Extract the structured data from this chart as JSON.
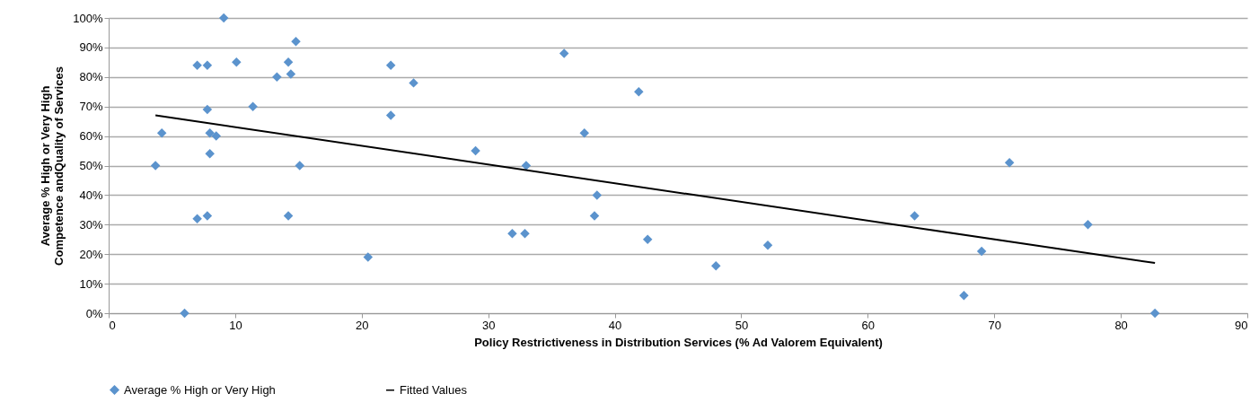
{
  "chart_data": {
    "type": "scatter",
    "xlabel": "Policy Restrictiveness in Distribution Services (% Ad Valorem Equivalent)",
    "ylabel": "Average % High or Very High Competence andQuality of Services",
    "xlim": [
      0,
      90
    ],
    "xticks": [
      0,
      10,
      20,
      30,
      40,
      50,
      60,
      70,
      80,
      90
    ],
    "ylim": [
      0,
      100
    ],
    "yticks": [
      {
        "value": 0,
        "label": "0%"
      },
      {
        "value": 10,
        "label": "10%"
      },
      {
        "value": 20,
        "label": "20%"
      },
      {
        "value": 30,
        "label": "30%"
      },
      {
        "value": 40,
        "label": "40%"
      },
      {
        "value": 50,
        "label": "50%"
      },
      {
        "value": 60,
        "label": "60%"
      },
      {
        "value": 70,
        "label": "70%"
      },
      {
        "value": 80,
        "label": "80%"
      },
      {
        "value": 90,
        "label": "90%"
      },
      {
        "value": 100,
        "label": "100%"
      }
    ],
    "grid": "y",
    "legend": "bottom left",
    "series": [
      {
        "name": "Average % High or Very High",
        "type": "scatter",
        "marker": "diamond",
        "color": "#5b93cd",
        "x": [
          3.7,
          4.2,
          6,
          7,
          7,
          7.8,
          7.8,
          7.8,
          8,
          8,
          8.5,
          9.1,
          10.1,
          11.4,
          13.3,
          14.2,
          14.2,
          14.4,
          14.8,
          15.1,
          20.5,
          22.3,
          22.3,
          24.1,
          29,
          31.9,
          32.9,
          33,
          36,
          37.6,
          38.4,
          38.6,
          41.9,
          42.6,
          48,
          52.1,
          63.7,
          67.6,
          69,
          71.2,
          77.4,
          82.7
        ],
        "values": [
          50,
          61,
          0,
          84,
          32,
          84,
          69,
          33,
          61,
          54,
          60,
          100,
          85,
          70,
          80,
          85,
          33,
          81,
          92,
          50,
          19,
          84,
          67,
          78,
          55,
          27,
          27,
          50,
          88,
          61,
          33,
          40,
          75,
          25,
          16,
          23,
          33,
          6,
          21,
          51,
          30,
          0
        ]
      },
      {
        "name": "Fitted Values",
        "type": "line",
        "color": "#000000",
        "x": [
          3.7,
          82.7
        ],
        "values": [
          67,
          17
        ]
      }
    ]
  }
}
